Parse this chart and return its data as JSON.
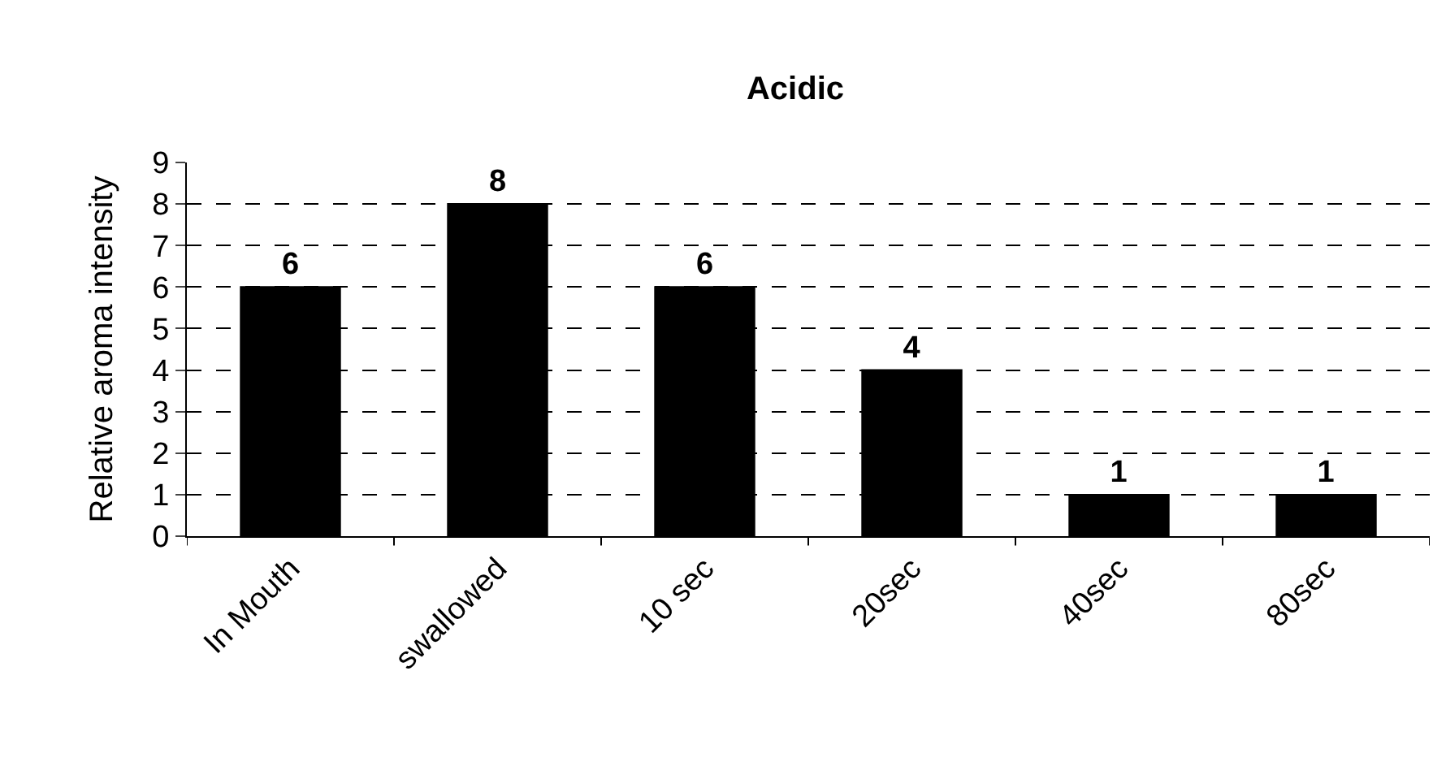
{
  "chart_data": {
    "type": "bar",
    "title": "Acidic",
    "ylabel": "Relative aroma intensity",
    "categories": [
      "In Mouth",
      "swallowed",
      "10 sec",
      "20sec",
      "40sec",
      "80sec"
    ],
    "values": [
      6,
      8,
      6,
      4,
      1,
      1
    ],
    "color": "#000000",
    "ylim": [
      0,
      9
    ],
    "yticks": [
      0,
      1,
      2,
      3,
      4,
      5,
      6,
      7,
      8,
      9
    ],
    "grid": "y",
    "data_labels": true,
    "legend": false
  }
}
